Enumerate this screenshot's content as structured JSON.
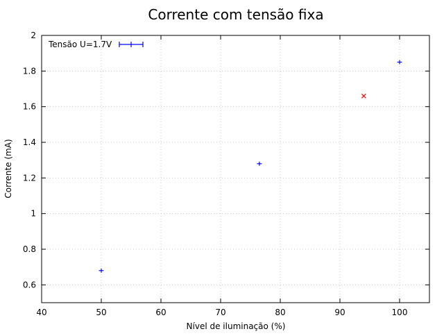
{
  "chart_data": {
    "type": "scatter",
    "title": "Corrente com tensão fixa",
    "xlabel": "Nível de iluminação (%)",
    "ylabel": "Corrente (mA)",
    "xlim": [
      40,
      105
    ],
    "ylim": [
      0.5,
      2.0
    ],
    "xticks": [
      40,
      50,
      60,
      70,
      80,
      90,
      100
    ],
    "yticks": [
      0.6,
      0.8,
      1.0,
      1.2,
      1.4,
      1.6,
      1.8,
      2.0
    ],
    "xtick_labels": [
      "40",
      "50",
      "60",
      "70",
      "80",
      "90",
      "100"
    ],
    "ytick_labels": [
      "0.6",
      "0.8",
      "1",
      "1.2",
      "1.4",
      "1.6",
      "1.8",
      "2"
    ],
    "grid": true,
    "legend_position": "top-left",
    "series": [
      {
        "name": "Tensão U=1.7V",
        "color": "#0000ff",
        "marker": "plus-errorbar",
        "points": [
          {
            "x": 50,
            "y": 0.68,
            "xerr": 0.4,
            "yerr": 0.01
          },
          {
            "x": 76.5,
            "y": 1.28,
            "xerr": 0.4,
            "yerr": 0.01
          },
          {
            "x": 100,
            "y": 1.85,
            "xerr": 0.4,
            "yerr": 0.01
          }
        ]
      }
    ],
    "outliers": [
      {
        "x": 94,
        "y": 1.66,
        "color": "#ff0000",
        "marker": "x"
      }
    ]
  }
}
